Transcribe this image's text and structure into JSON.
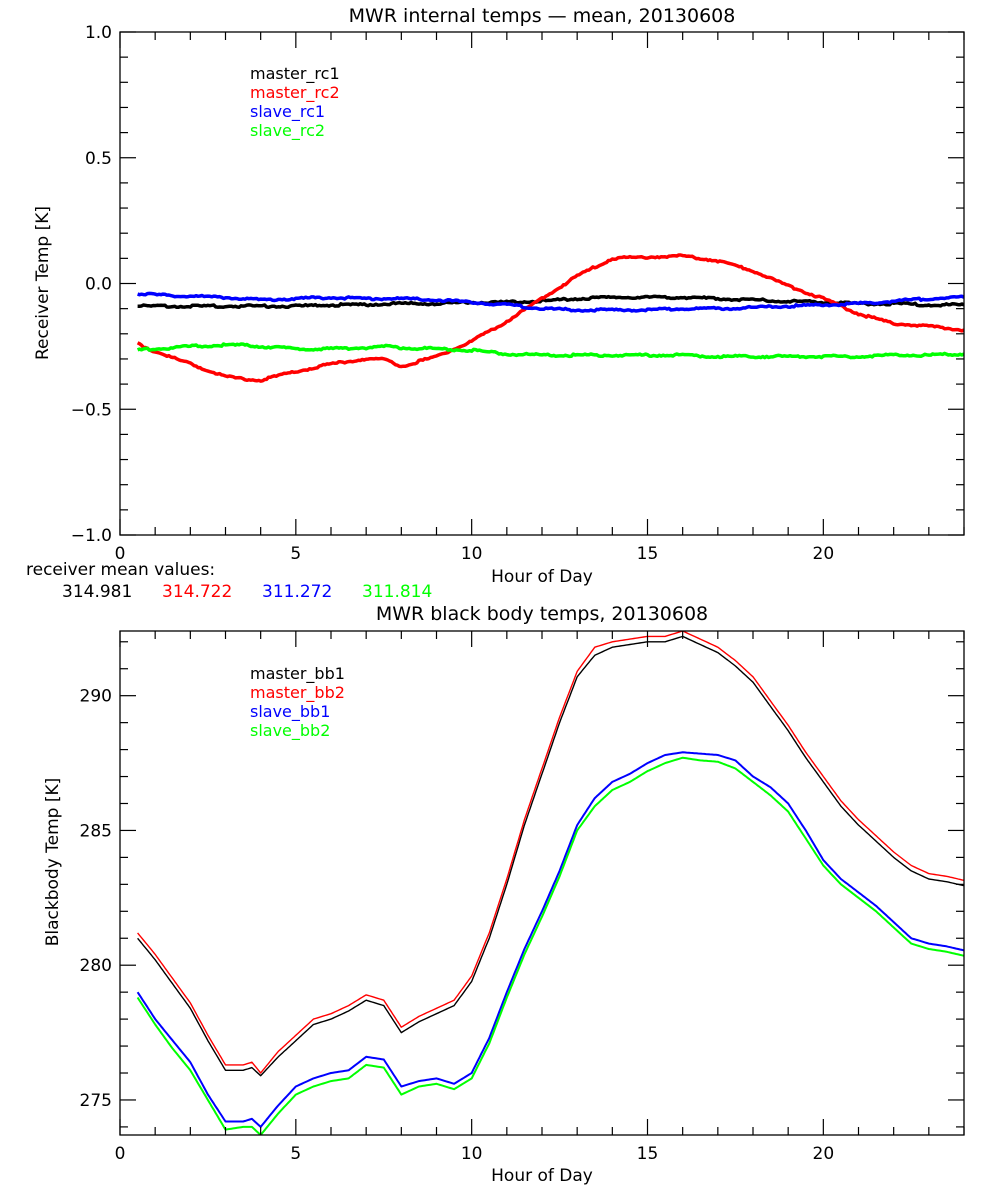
{
  "chart_data": [
    {
      "type": "line",
      "title": "MWR internal temps — mean, 20130608",
      "xlabel": "Hour of Day",
      "ylabel": "Receiver Temp [K]",
      "xlim": [
        0,
        24
      ],
      "ylim": [
        -1.0,
        1.0
      ],
      "xticks": [
        "0",
        "5",
        "10",
        "15",
        "20"
      ],
      "xtick_values": [
        0,
        5,
        10,
        15,
        20
      ],
      "yticks": [
        "−1.0",
        "−0.5",
        "0.0",
        "0.5",
        "1.0"
      ],
      "ytick_values": [
        -1.0,
        -0.5,
        0.0,
        0.5,
        1.0
      ],
      "grid": false,
      "legend_position": "top-left",
      "x": [
        0.5,
        1,
        2,
        3,
        3.5,
        4,
        5,
        6,
        7,
        7.5,
        8,
        9,
        10,
        11,
        12,
        13,
        14,
        15,
        16,
        17,
        18,
        19,
        20,
        21,
        22,
        23,
        24
      ],
      "series": [
        {
          "name": "master_rc1",
          "color": "#000000",
          "values": [
            -0.09,
            -0.09,
            -0.09,
            -0.09,
            -0.09,
            -0.09,
            -0.09,
            -0.085,
            -0.085,
            -0.08,
            -0.08,
            -0.08,
            -0.075,
            -0.075,
            -0.07,
            -0.06,
            -0.055,
            -0.055,
            -0.055,
            -0.06,
            -0.065,
            -0.07,
            -0.075,
            -0.08,
            -0.08,
            -0.085,
            -0.085
          ]
        },
        {
          "name": "master_rc2",
          "color": "#ff0000",
          "values": [
            -0.24,
            -0.27,
            -0.32,
            -0.37,
            -0.38,
            -0.385,
            -0.35,
            -0.32,
            -0.3,
            -0.3,
            -0.33,
            -0.29,
            -0.23,
            -0.15,
            -0.06,
            0.03,
            0.1,
            0.105,
            0.11,
            0.09,
            0.05,
            -0.01,
            -0.06,
            -0.12,
            -0.16,
            -0.17,
            -0.185
          ]
        },
        {
          "name": "slave_rc1",
          "color": "#0000ff",
          "values": [
            -0.04,
            -0.045,
            -0.05,
            -0.055,
            -0.06,
            -0.065,
            -0.06,
            -0.055,
            -0.06,
            -0.06,
            -0.06,
            -0.065,
            -0.075,
            -0.085,
            -0.1,
            -0.105,
            -0.105,
            -0.105,
            -0.1,
            -0.1,
            -0.095,
            -0.09,
            -0.085,
            -0.08,
            -0.07,
            -0.06,
            -0.055
          ]
        },
        {
          "name": "slave_rc2",
          "color": "#00ff00",
          "values": [
            -0.265,
            -0.26,
            -0.25,
            -0.245,
            -0.245,
            -0.25,
            -0.26,
            -0.26,
            -0.255,
            -0.25,
            -0.255,
            -0.26,
            -0.265,
            -0.28,
            -0.285,
            -0.285,
            -0.285,
            -0.285,
            -0.285,
            -0.29,
            -0.29,
            -0.29,
            -0.29,
            -0.29,
            -0.285,
            -0.285,
            -0.28
          ]
        }
      ],
      "annotation": {
        "label": "receiver mean values:",
        "values": [
          {
            "text": "314.981",
            "color": "#000000"
          },
          {
            "text": "314.722",
            "color": "#ff0000"
          },
          {
            "text": "311.272",
            "color": "#0000ff"
          },
          {
            "text": "311.814",
            "color": "#00ff00"
          }
        ]
      }
    },
    {
      "type": "line",
      "title": "MWR black body temps, 20130608",
      "xlabel": "Hour of Day",
      "ylabel": "Blackbody Temp [K]",
      "xlim": [
        0,
        24
      ],
      "ylim": [
        273.7,
        292.4
      ],
      "xticks": [
        "0",
        "5",
        "10",
        "15",
        "20"
      ],
      "xtick_values": [
        0,
        5,
        10,
        15,
        20
      ],
      "yticks": [
        "275",
        "280",
        "285",
        "290"
      ],
      "ytick_values": [
        275,
        280,
        285,
        290
      ],
      "grid": false,
      "legend_position": "top-left",
      "x": [
        0.5,
        1,
        1.5,
        2,
        2.5,
        3,
        3.5,
        3.75,
        4,
        4.5,
        5,
        5.5,
        6,
        6.5,
        7,
        7.5,
        8,
        8.5,
        9,
        9.5,
        10,
        10.5,
        11,
        11.5,
        12,
        12.5,
        13,
        13.5,
        14,
        14.5,
        15,
        15.5,
        16,
        16.5,
        17,
        17.5,
        18,
        18.5,
        19,
        19.5,
        20,
        20.5,
        21,
        21.5,
        22,
        22.5,
        23,
        23.5,
        24
      ],
      "series": [
        {
          "name": "master_bb1",
          "color": "#000000",
          "values": [
            281.0,
            280.2,
            279.3,
            278.4,
            277.2,
            276.1,
            276.1,
            276.2,
            275.9,
            276.6,
            277.2,
            277.8,
            278.0,
            278.3,
            278.7,
            278.5,
            277.5,
            277.9,
            278.2,
            278.5,
            279.4,
            281.0,
            283.0,
            285.2,
            287.1,
            289.0,
            290.7,
            291.5,
            291.8,
            291.9,
            292.0,
            292.0,
            292.2,
            291.9,
            291.6,
            291.1,
            290.5,
            289.6,
            288.7,
            287.7,
            286.8,
            285.9,
            285.2,
            284.6,
            284.0,
            283.5,
            283.2,
            283.1,
            282.95
          ]
        },
        {
          "name": "master_bb2",
          "color": "#ff0000",
          "values": [
            281.2,
            280.4,
            279.5,
            278.6,
            277.4,
            276.3,
            276.3,
            276.4,
            276.0,
            276.8,
            277.4,
            278.0,
            278.2,
            278.5,
            278.9,
            278.7,
            277.7,
            278.1,
            278.4,
            278.7,
            279.6,
            281.2,
            283.2,
            285.4,
            287.3,
            289.2,
            290.9,
            291.8,
            292.0,
            292.1,
            292.2,
            292.2,
            292.4,
            292.1,
            291.8,
            291.3,
            290.7,
            289.8,
            288.9,
            287.9,
            287.0,
            286.1,
            285.4,
            284.8,
            284.2,
            283.7,
            283.4,
            283.3,
            283.15
          ]
        },
        {
          "name": "slave_bb1",
          "color": "#0000ff",
          "values": [
            279.0,
            278.0,
            277.2,
            276.4,
            275.2,
            274.2,
            274.2,
            274.3,
            274.0,
            274.8,
            275.5,
            275.8,
            276.0,
            276.1,
            276.6,
            276.5,
            275.5,
            275.7,
            275.8,
            275.6,
            276.0,
            277.3,
            279.0,
            280.6,
            282.0,
            283.5,
            285.2,
            286.2,
            286.8,
            287.1,
            287.5,
            287.8,
            287.9,
            287.85,
            287.8,
            287.6,
            287.0,
            286.6,
            286.0,
            285.0,
            283.9,
            283.2,
            282.7,
            282.2,
            281.6,
            281.0,
            280.8,
            280.7,
            280.55
          ]
        },
        {
          "name": "slave_bb2",
          "color": "#00ff00",
          "values": [
            278.8,
            277.8,
            276.9,
            276.1,
            275.0,
            273.9,
            274.0,
            274.0,
            273.7,
            274.5,
            275.2,
            275.5,
            275.7,
            275.8,
            276.3,
            276.2,
            275.2,
            275.5,
            275.6,
            275.4,
            275.8,
            277.1,
            278.8,
            280.4,
            281.8,
            283.3,
            285.0,
            285.9,
            286.5,
            286.8,
            287.2,
            287.5,
            287.7,
            287.6,
            287.55,
            287.3,
            286.8,
            286.3,
            285.7,
            284.7,
            283.7,
            283.0,
            282.5,
            282.0,
            281.4,
            280.8,
            280.6,
            280.5,
            280.35
          ]
        }
      ]
    }
  ]
}
